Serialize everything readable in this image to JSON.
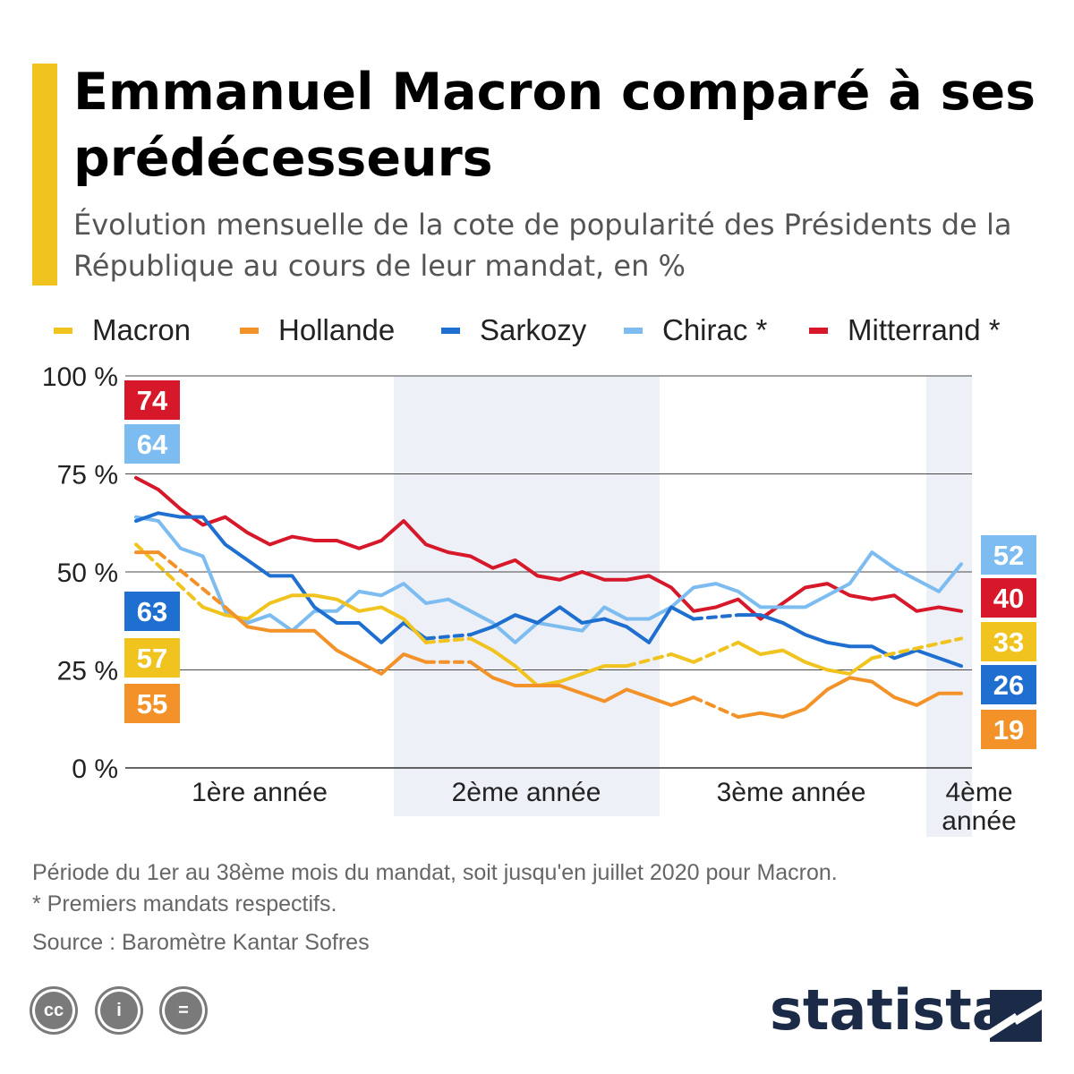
{
  "header": {
    "title": "Emmanuel Macron comparé à ses prédécesseurs",
    "subtitle": "Évolution mensuelle de la cote de popularité des Présidents de la République au cours de leur mandat, en %"
  },
  "legend": [
    {
      "name": "Macron",
      "color": "#f0c31f"
    },
    {
      "name": "Hollande",
      "color": "#f4922a"
    },
    {
      "name": "Sarkozy",
      "color": "#1f6fd1"
    },
    {
      "name": "Chirac *",
      "color": "#7dbcf0"
    },
    {
      "name": "Mitterrand *",
      "color": "#d7182a"
    }
  ],
  "chart_data": {
    "type": "line",
    "x": [
      1,
      2,
      3,
      4,
      5,
      6,
      7,
      8,
      9,
      10,
      11,
      12,
      13,
      14,
      15,
      16,
      17,
      18,
      19,
      20,
      21,
      22,
      23,
      24,
      25,
      26,
      27,
      28,
      29,
      30,
      31,
      32,
      33,
      34,
      35,
      36,
      37,
      38
    ],
    "x_tick_labels": [
      "1ère année",
      "2ème année",
      "3ème année",
      "4ème année"
    ],
    "y_ticks": [
      "100 %",
      "75 %",
      "50 %",
      "25 %",
      "0 %"
    ],
    "ylim": [
      0,
      100
    ],
    "grid": true,
    "series": [
      {
        "name": "Mitterrand *",
        "color": "#d7182a",
        "start_label": "74",
        "end_label": "40",
        "values": [
          74,
          71,
          66,
          62,
          64,
          60,
          57,
          59,
          58,
          58,
          56,
          58,
          63,
          57,
          55,
          54,
          51,
          53,
          49,
          48,
          50,
          48,
          48,
          49,
          46,
          40,
          41,
          43,
          38,
          42,
          46,
          47,
          44,
          43,
          44,
          40,
          41,
          40
        ]
      },
      {
        "name": "Chirac *",
        "color": "#7dbcf0",
        "start_label": "64",
        "end_label": "52",
        "values": [
          64,
          63,
          56,
          54,
          40,
          37,
          39,
          35,
          40,
          40,
          45,
          44,
          47,
          42,
          43,
          40,
          37,
          32,
          37,
          36,
          35,
          41,
          38,
          38,
          41,
          46,
          47,
          45,
          41,
          41,
          41,
          44,
          47,
          55,
          51,
          48,
          45,
          52
        ]
      },
      {
        "name": "Sarkozy",
        "color": "#1f6fd1",
        "start_label": "63",
        "end_label": "26",
        "values": [
          63,
          65,
          64,
          64,
          57,
          53,
          49,
          49,
          41,
          37,
          37,
          32,
          37,
          33,
          null,
          34,
          36,
          39,
          37,
          41,
          37,
          38,
          36,
          32,
          41,
          38,
          null,
          39,
          39,
          37,
          34,
          32,
          31,
          31,
          28,
          30,
          28,
          26
        ]
      },
      {
        "name": "Macron",
        "color": "#f0c31f",
        "start_label": "57",
        "end_label": "33",
        "values": [
          57,
          null,
          null,
          41,
          39,
          38,
          42,
          44,
          44,
          43,
          40,
          41,
          38,
          32,
          null,
          33,
          30,
          26,
          21,
          22,
          24,
          26,
          26,
          null,
          29,
          27,
          null,
          32,
          29,
          30,
          27,
          25,
          24,
          28,
          null,
          null,
          null,
          33
        ]
      },
      {
        "name": "Hollande",
        "color": "#f4922a",
        "start_label": "55",
        "end_label": "19",
        "values": [
          55,
          55,
          null,
          null,
          41,
          36,
          35,
          35,
          35,
          30,
          27,
          24,
          29,
          27,
          null,
          27,
          23,
          21,
          21,
          21,
          19,
          17,
          20,
          18,
          16,
          18,
          null,
          13,
          14,
          13,
          15,
          20,
          23,
          22,
          18,
          16,
          19,
          19
        ]
      }
    ]
  },
  "footer": {
    "note": "Période du 1er au 38ème mois du mandat, soit jusqu'en juillet 2020 pour Macron.",
    "asterisk_note": "* Premiers mandats respectifs.",
    "source": "Source : Baromètre Kantar Sofres"
  },
  "license_icons": [
    {
      "name": "cc-icon",
      "text": "cc"
    },
    {
      "name": "attribution-icon",
      "text": "i"
    },
    {
      "name": "no-derivatives-icon",
      "text": "="
    }
  ],
  "brand": {
    "name": "statista"
  }
}
